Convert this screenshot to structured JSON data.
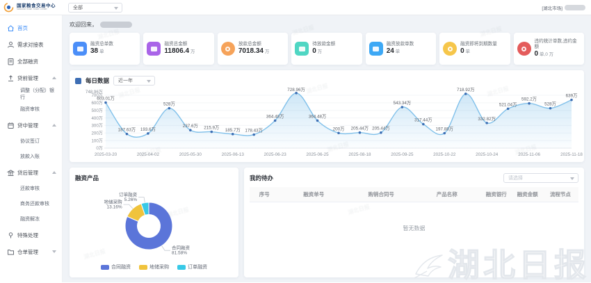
{
  "header": {
    "logo_title": "国家粮食交易中心",
    "logo_subtitle": "National Grain Trade Center",
    "scope_select_value": "全部",
    "market_tag": "[湖北市场]"
  },
  "sidebar": {
    "items": [
      {
        "label": "首页",
        "icon": "home-icon",
        "active": true
      },
      {
        "label": "需求对接表",
        "icon": "person-icon"
      },
      {
        "label": "全部融资",
        "icon": "document-icon"
      },
      {
        "label": "贷前管理",
        "icon": "pre-loan-icon",
        "expanded": true
      },
      {
        "label": "调整（分配）银行"
      },
      {
        "label": "融资审核"
      },
      {
        "label": "贷中管理",
        "icon": "in-loan-icon",
        "expanded": true
      },
      {
        "label": "协议签订"
      },
      {
        "label": "放款入账"
      },
      {
        "label": "贷后管理",
        "icon": "post-loan-icon",
        "expanded": true
      },
      {
        "label": "还款审核"
      },
      {
        "label": "商务还款审核"
      },
      {
        "label": "融资解冻"
      },
      {
        "label": "特殊处理",
        "icon": "special-icon"
      },
      {
        "label": "仓单管理",
        "icon": "warehouse-icon",
        "expanded": false
      }
    ]
  },
  "welcome": {
    "text": "欢迎回来，"
  },
  "stat_cards": [
    {
      "label": "融资总单数",
      "value": "38",
      "unit": "单",
      "icon": "folder-icon",
      "color": "#4b8ef8",
      "shape": "square"
    },
    {
      "label": "融资总金额",
      "value": "11806.4",
      "unit": "万",
      "icon": "money-icon",
      "color": "#a964e8",
      "shape": "square"
    },
    {
      "label": "放款总金额",
      "value": "7018.34",
      "unit": "万",
      "icon": "coin-icon",
      "color": "#f6a35a",
      "shape": "round"
    },
    {
      "label": "待放款金额",
      "value": "0",
      "unit": "万",
      "icon": "wallet-icon",
      "color": "#4fd6c3",
      "shape": "square"
    },
    {
      "label": "融资放款单数",
      "value": "24",
      "unit": "单",
      "icon": "loan-doc-icon",
      "color": "#3da8f5",
      "shape": "square"
    },
    {
      "label": "融资即将到期数量",
      "value": "0",
      "unit": "单",
      "icon": "bell-icon",
      "color": "#f6c64a",
      "shape": "round"
    },
    {
      "label": "违约统计单数,违约金额",
      "value": "0",
      "unit": "单,0 万",
      "icon": "clock-icon",
      "color": "#e45b5b",
      "shape": "round"
    }
  ],
  "chart_data": [
    {
      "type": "area",
      "title": "每日数据",
      "range_selector": "近一年",
      "legend_position": "none",
      "grid": "faint",
      "line_color": "#7fc0ea",
      "dot_color": "#3d6fb4",
      "x_tick_labels": [
        "2025-03-20",
        "2025-04-02",
        "2025-05-30",
        "2025-06-13",
        "2025-06-23",
        "2025-06-25",
        "2025-08-18",
        "2025-09-25",
        "2025-10-22",
        "2025-10-24",
        "2025-11-06",
        "2025-11-18"
      ],
      "x_tick_every": 2,
      "values": [
        603.01,
        187.63,
        193.6,
        528,
        237.6,
        215.9,
        185.7,
        178.43,
        364.48,
        728.96,
        364.48,
        200,
        205.44,
        205.44,
        543.34,
        317.44,
        197.88,
        718.92,
        332.82,
        521.04,
        592.2,
        528,
        639
      ],
      "point_labels": [
        "603.01万",
        "187.63万",
        "193.6万",
        "528万",
        "237.6万",
        "215.9万",
        "185.7万",
        "178.43万",
        "364.48万",
        "728.96万",
        "364.48万",
        "200万",
        "205.44万",
        "205.44万",
        "543.34万",
        "317.44万",
        "197.88万",
        "718.92万",
        "332.82万",
        "521.04万",
        "592.2万",
        "528万",
        "639万"
      ],
      "y_tick_values": [
        0,
        100,
        200,
        300,
        400,
        500,
        600,
        700
      ],
      "y_tick_labels": [
        "0万",
        "100万",
        "200万",
        "300万",
        "400万",
        "500万",
        "600万",
        "700万"
      ],
      "y_max_value": 748.96,
      "y_max_label": "748.96万",
      "ylim": [
        0,
        748.96
      ]
    },
    {
      "type": "pie",
      "title": "融资产品",
      "donut": true,
      "legend_position": "bottom",
      "slices": [
        {
          "name": "合同融资",
          "pct": 81.58,
          "label": "81.58%",
          "color": "#5b75d9"
        },
        {
          "name": "地储采购",
          "pct": 13.16,
          "label": "13.16%",
          "color": "#f0c33c"
        },
        {
          "name": "订单融资",
          "pct": 5.26,
          "label": "5.26%",
          "color": "#38c9e7"
        }
      ]
    }
  ],
  "todo": {
    "title": "我的待办",
    "filter_placeholder": "请选择",
    "columns": [
      "序号",
      "融资单号",
      "购销合同号",
      "产品名称",
      "融资银行",
      "融资金额",
      "流程节点"
    ],
    "empty_text": "暂无数据"
  },
  "watermark": {
    "big_text": "湖北日报",
    "small_text": "湖北日报"
  }
}
